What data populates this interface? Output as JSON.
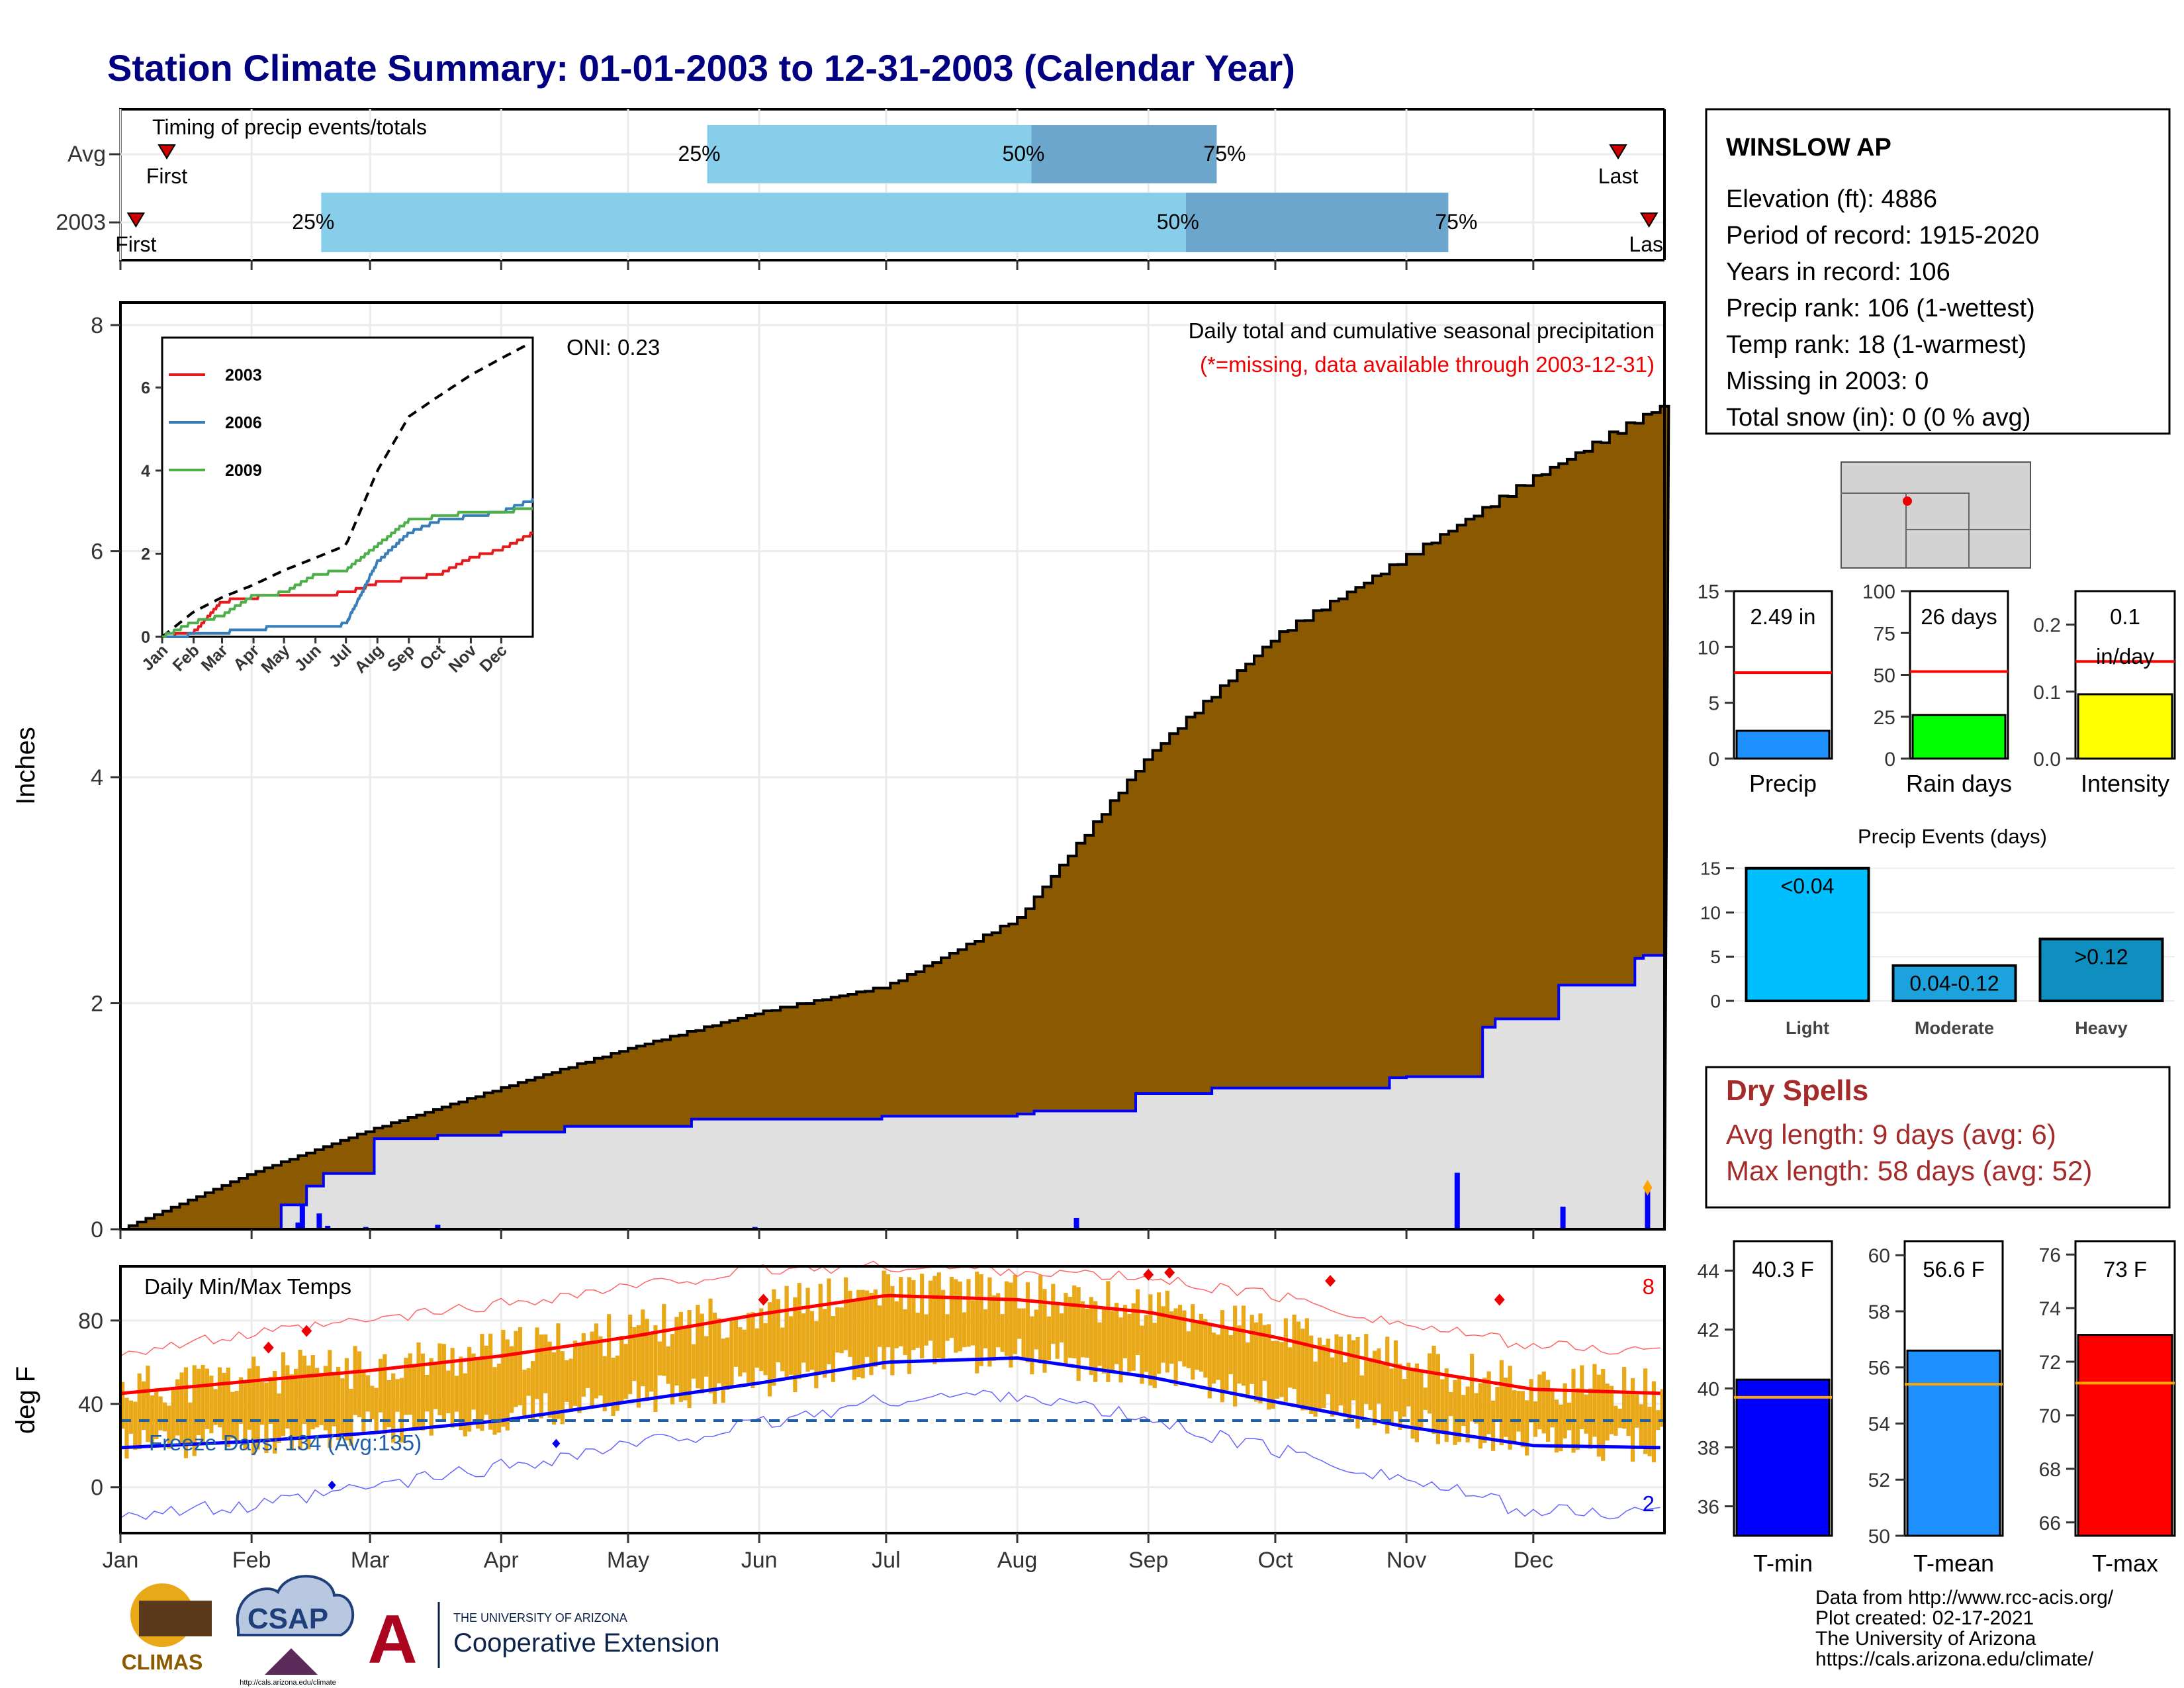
{
  "title": "Station Climate Summary: 01-01-2003 to 12-31-2003 (Calendar Year)",
  "colors": {
    "title": "#000080",
    "cumulative_fill": "#8B5A00",
    "normal_fill": "#E0E0E0",
    "normal_line": "#0000FF",
    "timing_light": "#87CEEB",
    "timing_dark": "#6CA6CD",
    "temp_bar": "#E8A817",
    "tmax_line": "#FF0000",
    "tmin_line": "#0000FF",
    "dry_spell": "#A52A2A",
    "marker": "#CC0000"
  },
  "station": {
    "name": "WINSLOW AP",
    "lines": [
      "Elevation (ft): 4886",
      "Period of record: 1915-2020",
      "Years in record: 106",
      "Precip rank: 106 (1-wettest)",
      "Temp rank: 18 (1-warmest)",
      "Missing in 2003: 0",
      "Total snow (in): 0 (0 % avg)"
    ]
  },
  "timing": {
    "title": "Timing of precip events/totals",
    "row_labels": [
      "Avg",
      "2003"
    ],
    "first_label": "First",
    "last_label": "Last",
    "pct_labels": [
      "25%",
      "50%",
      "75%"
    ],
    "avg": {
      "first": 0.03,
      "p25": 0.38,
      "p50": 0.59,
      "p75": 0.71,
      "last": 0.97
    },
    "y2003": {
      "first": 0.01,
      "p25": 0.13,
      "p50": 0.69,
      "p75": 0.86,
      "last": 0.99
    }
  },
  "precip_main": {
    "ylabel": "Inches",
    "title": "Daily total and cumulative seasonal precipitation",
    "subtitle": "(*=missing, data available through 2003-12-31)",
    "oni": "ONI: 0.23",
    "y_ticks": [
      "0",
      "2",
      "4",
      "6",
      "8"
    ]
  },
  "inset": {
    "legend": [
      "2003",
      "2006",
      "2009"
    ],
    "legend_colors": [
      "#E41A1C",
      "#377EB8",
      "#4DAF4A"
    ],
    "y_ticks": [
      "0",
      "2",
      "4",
      "6"
    ],
    "x_ticks": [
      "Jan",
      "Feb",
      "Mar",
      "Apr",
      "May",
      "Jun",
      "Jul",
      "Aug",
      "Sep",
      "Oct",
      "Nov",
      "Dec"
    ]
  },
  "months": [
    "Jan",
    "Feb",
    "Mar",
    "Apr",
    "May",
    "Jun",
    "Jul",
    "Aug",
    "Sep",
    "Oct",
    "Nov",
    "Dec"
  ],
  "temp_main": {
    "title": "Daily Min/Max Temps",
    "ylabel": "deg F",
    "freeze_label": "Freeze Days: 134 (Avg:135)",
    "record_high_count": "8",
    "record_low_count": "2",
    "y_ticks": [
      "0",
      "40",
      "80"
    ]
  },
  "mini_precip": {
    "precip": {
      "label": "Precip",
      "value_label": "2.49 in",
      "ticks": [
        "0",
        "5",
        "10",
        "15"
      ],
      "value": 2.49,
      "avg": 7.7,
      "max": 15,
      "color": "#1E90FF"
    },
    "rain_days": {
      "label": "Rain days",
      "value_label": "26 days",
      "ticks": [
        "0",
        "25",
        "50",
        "75",
        "100"
      ],
      "value": 26,
      "avg": 52,
      "max": 100,
      "color": "#00FF00"
    },
    "intensity": {
      "label": "Intensity",
      "value_label_1": "0.1",
      "value_label_2": "in/day",
      "ticks": [
        "0.0",
        "0.1",
        "0.2"
      ],
      "value": 0.096,
      "avg": 0.145,
      "max": 0.25,
      "color": "#FFFF00"
    }
  },
  "events": {
    "title": "Precip Events (days)",
    "categories": [
      "Light",
      "Moderate",
      "Heavy"
    ],
    "labels": [
      "<0.04",
      "0.04-0.12",
      ">0.12"
    ],
    "values": [
      15,
      4,
      7
    ],
    "colors": [
      "#00BFFF",
      "#1CA3DE",
      "#0F8FC0"
    ],
    "ticks": [
      "0",
      "5",
      "10",
      "15"
    ]
  },
  "dry_spells": {
    "title": "Dry Spells",
    "line1": "Avg length: 9 days (avg: 6)",
    "line2": "Max length: 58 days (avg: 52)"
  },
  "mini_temp": {
    "tmin": {
      "label": "T-min",
      "value_label": "40.3 F",
      "ticks": [
        "36",
        "38",
        "40",
        "42",
        "44"
      ],
      "min": 35,
      "max": 45,
      "value": 40.3,
      "avg": 39.7,
      "color": "#0000FF"
    },
    "tmean": {
      "label": "T-mean",
      "value_label": "56.6 F",
      "ticks": [
        "50",
        "52",
        "54",
        "56",
        "58",
        "60"
      ],
      "min": 50,
      "max": 60.5,
      "value": 56.6,
      "avg": 55.4,
      "color": "#1E90FF"
    },
    "tmax": {
      "label": "T-max",
      "value_label": "73 F",
      "ticks": [
        "66",
        "68",
        "70",
        "72",
        "74",
        "76"
      ],
      "min": 65.5,
      "max": 76.5,
      "value": 73,
      "avg": 71.2,
      "color": "#FF0000"
    }
  },
  "footer": {
    "lines": [
      "Data from http://www.rcc-acis.org/",
      "Plot created: 02-17-2021",
      "The University of Arizona",
      "https://cals.arizona.edu/climate/"
    ],
    "logo_climas": "CLIMAS",
    "logo_csap": "CSAP",
    "logo_csap_url": "http://cals.arizona.edu/climate",
    "logo_ua_line1": "THE UNIVERSITY OF ARIZONA",
    "logo_ua_line2": "Cooperative Extension",
    "logo_ua_letter": "A"
  },
  "chart_data": [
    {
      "type": "bar",
      "title": "Timing of precip events/totals",
      "categories": [
        "Avg",
        "2003"
      ],
      "series": [
        {
          "name": "25%",
          "values": [
            0.38,
            0.13
          ]
        },
        {
          "name": "50%",
          "values": [
            0.59,
            0.69
          ]
        },
        {
          "name": "75%",
          "values": [
            0.71,
            0.86
          ]
        }
      ]
    },
    {
      "type": "area",
      "title": "Daily total and cumulative seasonal precipitation",
      "ylabel": "Inches",
      "ylim": [
        0,
        8.2
      ],
      "x": [
        "Jan",
        "Feb",
        "Mar",
        "Apr",
        "May",
        "Jun",
        "Jul",
        "Aug",
        "Sep",
        "Oct",
        "Nov",
        "Dec",
        "Dec 31"
      ],
      "series": [
        {
          "name": "avg cumulative",
          "values": [
            0,
            0.5,
            0.88,
            1.25,
            1.6,
            1.92,
            2.15,
            2.75,
            4.2,
            5.25,
            5.95,
            6.65,
            7.3
          ]
        },
        {
          "name": "2003 cumulative",
          "values": [
            0,
            0.02,
            0.8,
            0.86,
            0.96,
            0.99,
            1.0,
            1.02,
            1.22,
            1.28,
            1.35,
            2.08,
            2.49
          ]
        }
      ],
      "daily_events": [
        {
          "date": "Feb 12",
          "value": 0.22
        },
        {
          "date": "Feb 16",
          "value": 0.14
        },
        {
          "date": "Aug 14",
          "value": 0.1
        },
        {
          "date": "Nov 12",
          "value": 0.5
        },
        {
          "date": "Dec 7",
          "value": 0.2
        },
        {
          "date": "Dec 27",
          "value": 0.38
        }
      ]
    },
    {
      "type": "line",
      "title": "",
      "ylim": [
        0,
        7
      ],
      "x": [
        "Jan",
        "Feb",
        "Mar",
        "Apr",
        "May",
        "Jun",
        "Jul",
        "Aug",
        "Sep",
        "Oct",
        "Nov",
        "Dec",
        "Dec 31"
      ],
      "series": [
        {
          "name": "avg",
          "values": [
            0,
            0.6,
            0.95,
            1.25,
            1.6,
            1.9,
            2.2,
            4.0,
            5.3,
            5.8,
            6.3,
            6.7,
            7.1
          ]
        },
        {
          "name": "2003",
          "values": [
            0,
            0.1,
            0.85,
            0.95,
            1.0,
            1.02,
            1.05,
            1.3,
            1.4,
            1.5,
            1.9,
            2.1,
            2.49
          ]
        },
        {
          "name": "2006",
          "values": [
            0,
            0.05,
            0.1,
            0.2,
            0.22,
            0.25,
            0.3,
            1.8,
            2.5,
            2.8,
            2.9,
            3.0,
            3.3
          ]
        },
        {
          "name": "2009",
          "values": [
            0,
            0.35,
            0.5,
            1.0,
            1.05,
            1.5,
            1.6,
            2.2,
            2.8,
            2.9,
            3.0,
            3.0,
            3.1
          ]
        }
      ]
    },
    {
      "type": "line",
      "title": "Daily Min/Max Temps",
      "ylabel": "deg F",
      "ylim": [
        -20,
        105
      ],
      "x": [
        "Jan",
        "Feb",
        "Mar",
        "Apr",
        "May",
        "Jun",
        "Jul",
        "Aug",
        "Sep",
        "Oct",
        "Nov",
        "Dec",
        "Dec 31"
      ],
      "series": [
        {
          "name": "normal max",
          "values": [
            45,
            51,
            56,
            63,
            72,
            83,
            92,
            90,
            84,
            72,
            57,
            47,
            45
          ]
        },
        {
          "name": "normal min",
          "values": [
            19,
            22,
            26,
            32,
            41,
            50,
            60,
            62,
            53,
            41,
            29,
            20,
            19
          ]
        },
        {
          "name": "record high",
          "values": [
            65,
            73,
            80,
            88,
            96,
            104,
            106,
            104,
            100,
            92,
            78,
            68,
            65
          ]
        },
        {
          "name": "record low",
          "values": [
            -12,
            -10,
            0,
            10,
            20,
            30,
            42,
            45,
            32,
            18,
            4,
            -12,
            -12
          ]
        },
        {
          "name": "freeze line",
          "values": [
            32,
            32,
            32,
            32,
            32,
            32,
            32,
            32,
            32,
            32,
            32,
            32,
            32
          ]
        }
      ]
    },
    {
      "type": "bar",
      "title": "Precip Events (days)",
      "categories": [
        "Light",
        "Moderate",
        "Heavy"
      ],
      "values": [
        15,
        4,
        7
      ],
      "ylim": [
        0,
        15.5
      ]
    }
  ]
}
